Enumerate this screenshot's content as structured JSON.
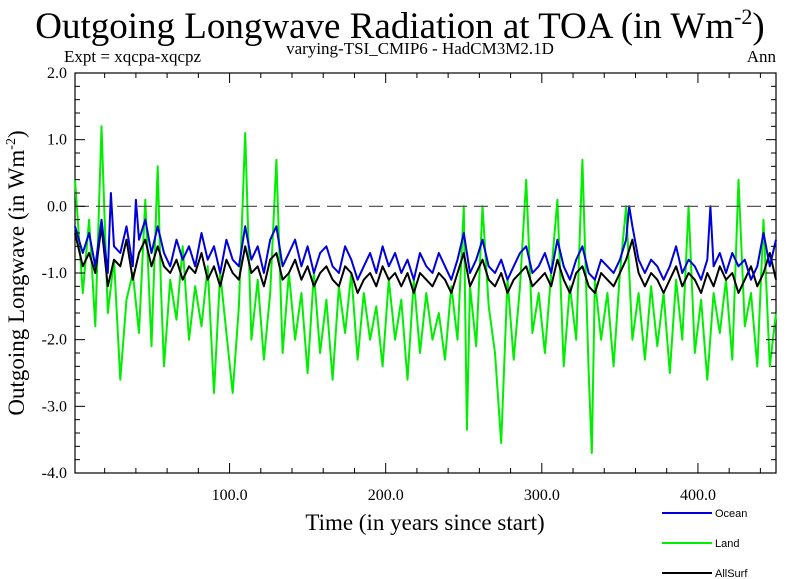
{
  "chart_data": {
    "type": "line",
    "title": "Outgoing Longwave Radiation at TOA (in Wm",
    "title_sup": "-2",
    "title_end": ")",
    "subtitle_left": "Expt = xqcpa-xqcpz",
    "subtitle_center": "varying-TSI_CMIP6 - HadCM3M2.1D",
    "subtitle_right": "Ann",
    "xlabel": "Time (in years since start)",
    "ylabel": "Outgoing Longwave (in Wm",
    "ylabel_sup": "-2",
    "ylabel_end": ")",
    "xlim": [
      1,
      450
    ],
    "ylim": [
      -4.0,
      2.0
    ],
    "xticks": [
      100,
      200,
      300,
      400
    ],
    "xtick_labels": [
      "100.0",
      "200.0",
      "300.0",
      "400.0"
    ],
    "yticks": [
      -4,
      -3,
      -2,
      -1,
      0,
      1,
      2
    ],
    "ytick_labels": [
      "-4.0",
      "-3.0",
      "-2.0",
      "-1.0",
      "0.0",
      "1.0",
      "2.0"
    ],
    "reference_line": 0.0,
    "legend_position": "bottom-right, outside plot",
    "series": [
      {
        "name": "Land",
        "color": "#00ee00",
        "x": [
          1,
          6,
          10,
          14,
          18,
          22,
          26,
          30,
          34,
          38,
          42,
          46,
          50,
          54,
          56,
          58,
          62,
          66,
          70,
          74,
          78,
          82,
          86,
          90,
          94,
          98,
          102,
          106,
          110,
          114,
          118,
          122,
          126,
          130,
          134,
          138,
          142,
          146,
          150,
          154,
          158,
          162,
          166,
          170,
          174,
          178,
          182,
          186,
          190,
          194,
          198,
          202,
          206,
          210,
          214,
          218,
          222,
          226,
          230,
          234,
          238,
          242,
          246,
          250,
          252,
          254,
          258,
          262,
          266,
          270,
          274,
          278,
          282,
          286,
          290,
          294,
          298,
          302,
          306,
          310,
          314,
          318,
          322,
          326,
          330,
          332,
          334,
          338,
          342,
          346,
          350,
          354,
          358,
          362,
          366,
          370,
          374,
          378,
          382,
          386,
          390,
          394,
          398,
          402,
          406,
          410,
          414,
          418,
          422,
          426,
          430,
          434,
          438,
          442,
          446,
          450
        ],
        "y": [
          0.4,
          -1.3,
          -0.2,
          -1.8,
          1.2,
          -1.6,
          -0.8,
          -2.6,
          -1.4,
          -1.0,
          -1.9,
          0.1,
          -2.1,
          0.6,
          -1.2,
          -2.4,
          -1.1,
          -1.7,
          -0.6,
          -2.0,
          -1.2,
          -1.8,
          -0.9,
          -2.8,
          -1.0,
          -1.9,
          -2.8,
          -1.5,
          1.1,
          -2.0,
          -1.1,
          -2.3,
          -1.3,
          0.7,
          -2.2,
          -1.0,
          -2.0,
          -1.3,
          -2.5,
          -1.0,
          -2.2,
          -1.4,
          -2.6,
          -1.2,
          -1.9,
          -1.0,
          -2.3,
          -1.3,
          -2.0,
          -1.5,
          -2.4,
          -1.1,
          -2.0,
          -1.4,
          -2.6,
          -1.1,
          -2.2,
          -1.3,
          -2.0,
          -1.6,
          -2.3,
          -1.2,
          -2.0,
          0.0,
          -3.35,
          -1.2,
          -2.1,
          0.0,
          -1.5,
          -2.2,
          -3.55,
          -1.1,
          -2.3,
          -1.2,
          0.4,
          -1.9,
          -1.3,
          -2.2,
          -1.0,
          0.1,
          -2.4,
          -1.2,
          -2.0,
          0.7,
          -2.5,
          -3.7,
          -1.1,
          -2.0,
          -1.3,
          -2.4,
          -1.0,
          0.0,
          -2.0,
          -1.3,
          -2.3,
          -1.2,
          -2.1,
          -1.3,
          -2.5,
          -1.1,
          -2.0,
          0.0,
          -2.2,
          -1.4,
          -2.6,
          -1.3,
          -1.9,
          -1.1,
          -2.3,
          0.4,
          -1.8,
          -1.3,
          -2.4,
          -0.2,
          -2.4,
          -1.6
        ]
      },
      {
        "name": "AllSurf",
        "color": "#000000",
        "x": [
          1,
          6,
          10,
          14,
          18,
          22,
          26,
          30,
          34,
          38,
          42,
          46,
          50,
          54,
          58,
          62,
          66,
          70,
          74,
          78,
          82,
          86,
          90,
          94,
          98,
          102,
          106,
          110,
          114,
          118,
          122,
          126,
          130,
          134,
          138,
          142,
          146,
          150,
          154,
          158,
          162,
          166,
          170,
          174,
          178,
          182,
          186,
          190,
          194,
          198,
          202,
          206,
          210,
          214,
          218,
          222,
          226,
          230,
          234,
          238,
          242,
          246,
          250,
          254,
          258,
          262,
          266,
          270,
          274,
          278,
          282,
          286,
          290,
          294,
          298,
          302,
          306,
          310,
          314,
          318,
          322,
          326,
          330,
          334,
          338,
          342,
          346,
          350,
          354,
          358,
          362,
          366,
          370,
          374,
          378,
          382,
          386,
          390,
          394,
          398,
          402,
          406,
          410,
          414,
          418,
          422,
          426,
          430,
          434,
          438,
          442,
          446,
          450
        ],
        "y": [
          -0.4,
          -0.9,
          -0.7,
          -1.0,
          -0.3,
          -1.2,
          -0.8,
          -0.9,
          -0.5,
          -1.1,
          -0.7,
          -0.5,
          -0.9,
          -0.6,
          -0.9,
          -1.0,
          -0.8,
          -1.1,
          -0.9,
          -1.0,
          -0.7,
          -1.1,
          -0.9,
          -1.2,
          -0.8,
          -1.0,
          -1.1,
          -0.6,
          -1.0,
          -0.9,
          -1.2,
          -0.8,
          -0.7,
          -1.1,
          -1.0,
          -0.8,
          -1.1,
          -0.9,
          -1.2,
          -1.0,
          -0.9,
          -1.1,
          -1.2,
          -0.9,
          -1.0,
          -1.3,
          -1.1,
          -1.0,
          -1.2,
          -0.9,
          -1.1,
          -1.0,
          -1.2,
          -1.0,
          -1.3,
          -1.0,
          -1.1,
          -1.2,
          -1.0,
          -1.1,
          -1.3,
          -1.0,
          -0.7,
          -1.2,
          -1.0,
          -0.8,
          -1.1,
          -1.2,
          -1.0,
          -1.3,
          -1.1,
          -1.0,
          -0.9,
          -1.2,
          -1.1,
          -1.0,
          -1.2,
          -0.8,
          -1.1,
          -1.3,
          -1.0,
          -0.9,
          -1.2,
          -1.3,
          -1.0,
          -1.1,
          -1.2,
          -1.0,
          -0.8,
          -0.5,
          -1.0,
          -1.2,
          -1.0,
          -1.1,
          -1.3,
          -1.1,
          -0.9,
          -1.2,
          -1.0,
          -1.1,
          -1.3,
          -1.0,
          -1.2,
          -0.9,
          -1.1,
          -1.0,
          -1.3,
          -1.1,
          -0.9,
          -1.2,
          -1.0,
          -0.7,
          -1.1
        ]
      },
      {
        "name": "Ocean",
        "color": "#0000dd",
        "x": [
          1,
          6,
          10,
          14,
          18,
          22,
          24,
          26,
          30,
          34,
          38,
          40,
          42,
          46,
          50,
          54,
          58,
          62,
          66,
          70,
          74,
          78,
          82,
          86,
          90,
          94,
          98,
          102,
          106,
          110,
          114,
          118,
          122,
          126,
          130,
          134,
          138,
          142,
          146,
          150,
          154,
          158,
          162,
          166,
          170,
          174,
          178,
          182,
          186,
          190,
          194,
          198,
          202,
          206,
          210,
          214,
          218,
          222,
          226,
          230,
          234,
          238,
          242,
          246,
          250,
          254,
          258,
          262,
          266,
          270,
          274,
          278,
          282,
          286,
          290,
          294,
          298,
          302,
          306,
          310,
          314,
          318,
          322,
          326,
          330,
          334,
          338,
          342,
          346,
          350,
          354,
          356,
          358,
          362,
          366,
          370,
          374,
          378,
          382,
          386,
          390,
          394,
          398,
          402,
          406,
          408,
          410,
          414,
          418,
          422,
          426,
          430,
          434,
          438,
          442,
          446,
          450
        ],
        "y": [
          -0.3,
          -0.7,
          -0.4,
          -0.9,
          -0.2,
          -1.0,
          0.2,
          -0.6,
          -0.7,
          -0.3,
          -0.9,
          0.1,
          -0.5,
          -0.2,
          -0.7,
          -0.3,
          -0.7,
          -0.9,
          -0.5,
          -0.8,
          -0.6,
          -0.9,
          -0.4,
          -0.8,
          -0.6,
          -1.0,
          -0.5,
          -0.8,
          -0.9,
          -0.3,
          -0.8,
          -0.6,
          -1.0,
          -0.5,
          -0.3,
          -0.9,
          -0.7,
          -0.5,
          -0.9,
          -0.6,
          -1.0,
          -0.7,
          -0.6,
          -0.9,
          -1.0,
          -0.6,
          -0.8,
          -1.1,
          -0.9,
          -0.7,
          -1.0,
          -0.6,
          -0.9,
          -0.7,
          -1.0,
          -0.8,
          -1.1,
          -0.7,
          -0.9,
          -1.0,
          -0.7,
          -0.9,
          -1.1,
          -0.8,
          -0.4,
          -1.0,
          -0.8,
          -0.5,
          -0.9,
          -1.0,
          -0.8,
          -1.1,
          -0.9,
          -0.7,
          -0.6,
          -1.0,
          -0.9,
          -0.7,
          -1.0,
          -0.5,
          -0.9,
          -1.1,
          -0.8,
          -0.6,
          -1.0,
          -1.1,
          -0.8,
          -0.9,
          -1.0,
          -0.8,
          -0.5,
          0.0,
          -0.3,
          -0.8,
          -1.0,
          -0.8,
          -0.9,
          -1.1,
          -0.9,
          -0.6,
          -1.0,
          -0.8,
          -0.9,
          -1.1,
          -0.8,
          0.0,
          -0.9,
          -0.7,
          -1.0,
          -0.7,
          -0.9,
          -0.8,
          -1.1,
          -0.9,
          -0.4,
          -0.9,
          -0.5
        ]
      }
    ]
  }
}
